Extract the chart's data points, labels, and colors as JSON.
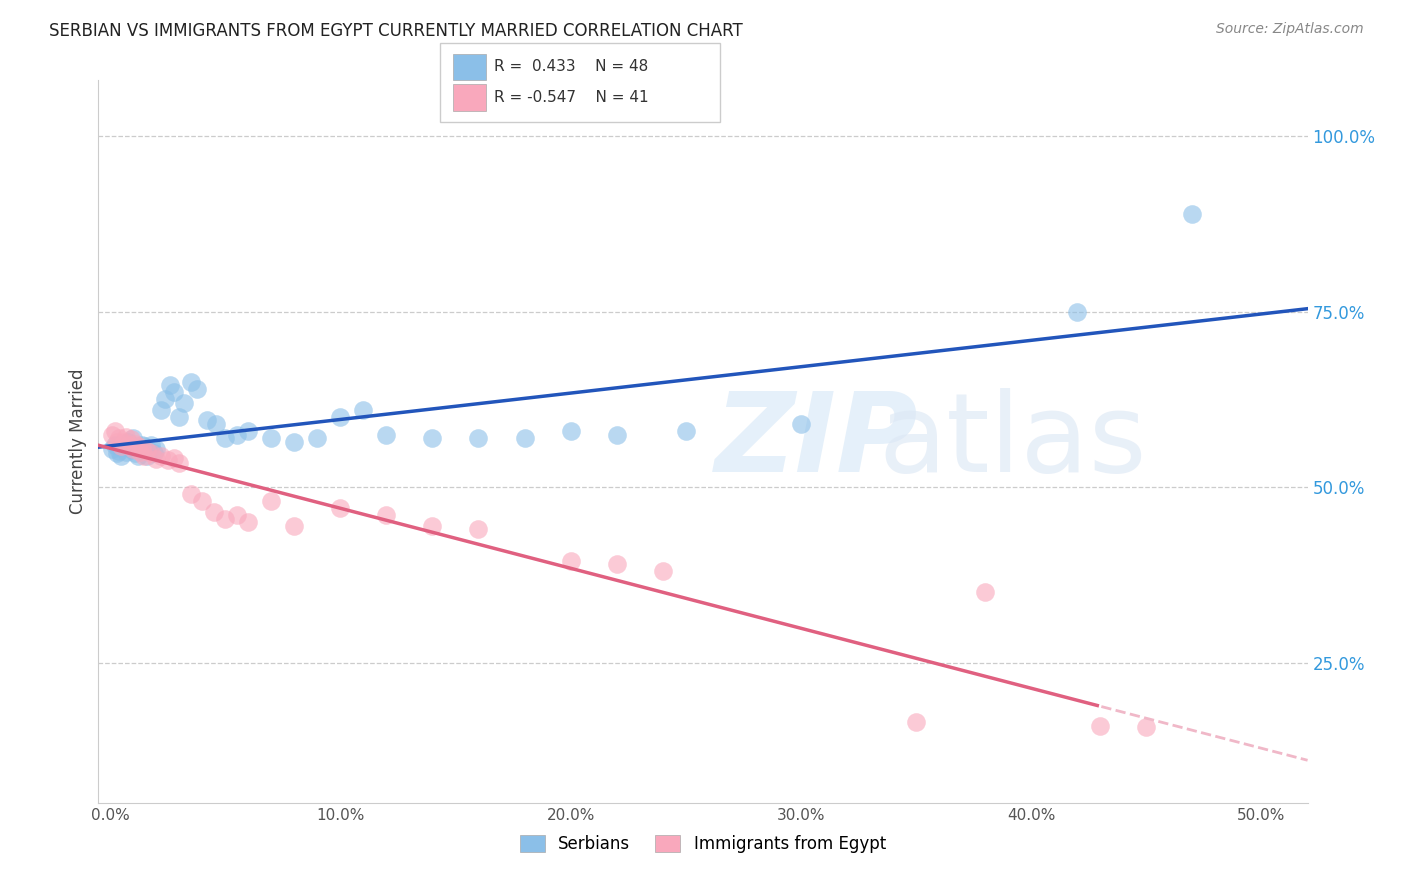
{
  "title": "SERBIAN VS IMMIGRANTS FROM EGYPT CURRENTLY MARRIED CORRELATION CHART",
  "source": "Source: ZipAtlas.com",
  "ylabel": "Currently Married",
  "xlabel_ticks": [
    "0.0%",
    "10.0%",
    "20.0%",
    "30.0%",
    "40.0%",
    "50.0%"
  ],
  "xlabel_vals": [
    0.0,
    0.1,
    0.2,
    0.3,
    0.4,
    0.5
  ],
  "ylabel_ticks": [
    "25.0%",
    "50.0%",
    "75.0%",
    "100.0%"
  ],
  "ylabel_vals": [
    0.25,
    0.5,
    0.75,
    1.0
  ],
  "xlim": [
    -0.005,
    0.52
  ],
  "ylim": [
    0.05,
    1.08
  ],
  "serbian_R": 0.433,
  "serbian_N": 48,
  "egypt_R": -0.547,
  "egypt_N": 41,
  "serbian_color": "#8bbfe8",
  "egypt_color": "#f9a8bc",
  "line_serbian_color": "#2255bb",
  "line_egypt_color": "#e06080",
  "dashed_egypt_color": "#f0b8c8",
  "legend_serbian_label": "Serbians",
  "legend_egypt_label": "Immigrants from Egypt",
  "serbian_x": [
    0.001,
    0.002,
    0.003,
    0.004,
    0.005,
    0.006,
    0.007,
    0.008,
    0.009,
    0.01,
    0.011,
    0.012,
    0.013,
    0.014,
    0.015,
    0.016,
    0.017,
    0.018,
    0.019,
    0.02,
    0.022,
    0.024,
    0.026,
    0.028,
    0.03,
    0.032,
    0.035,
    0.038,
    0.042,
    0.046,
    0.05,
    0.055,
    0.06,
    0.07,
    0.08,
    0.09,
    0.1,
    0.11,
    0.12,
    0.14,
    0.16,
    0.18,
    0.2,
    0.22,
    0.25,
    0.3,
    0.42,
    0.47
  ],
  "serbian_y": [
    0.555,
    0.56,
    0.548,
    0.552,
    0.545,
    0.558,
    0.55,
    0.565,
    0.555,
    0.57,
    0.548,
    0.545,
    0.552,
    0.56,
    0.558,
    0.545,
    0.552,
    0.56,
    0.548,
    0.555,
    0.61,
    0.625,
    0.645,
    0.635,
    0.6,
    0.62,
    0.65,
    0.64,
    0.595,
    0.59,
    0.57,
    0.575,
    0.58,
    0.57,
    0.565,
    0.57,
    0.6,
    0.61,
    0.575,
    0.57,
    0.57,
    0.57,
    0.58,
    0.575,
    0.58,
    0.59,
    0.75,
    0.89
  ],
  "egypt_x": [
    0.001,
    0.002,
    0.003,
    0.004,
    0.005,
    0.006,
    0.007,
    0.008,
    0.009,
    0.01,
    0.011,
    0.012,
    0.013,
    0.014,
    0.015,
    0.016,
    0.018,
    0.02,
    0.022,
    0.025,
    0.028,
    0.03,
    0.035,
    0.04,
    0.045,
    0.05,
    0.055,
    0.06,
    0.07,
    0.08,
    0.1,
    0.12,
    0.14,
    0.16,
    0.2,
    0.22,
    0.24,
    0.35,
    0.38,
    0.43,
    0.45
  ],
  "egypt_y": [
    0.575,
    0.58,
    0.565,
    0.57,
    0.558,
    0.565,
    0.572,
    0.56,
    0.568,
    0.555,
    0.562,
    0.558,
    0.55,
    0.555,
    0.545,
    0.552,
    0.548,
    0.54,
    0.545,
    0.538,
    0.542,
    0.535,
    0.49,
    0.48,
    0.465,
    0.455,
    0.46,
    0.45,
    0.48,
    0.445,
    0.47,
    0.46,
    0.445,
    0.44,
    0.395,
    0.39,
    0.38,
    0.165,
    0.35,
    0.16,
    0.158
  ]
}
